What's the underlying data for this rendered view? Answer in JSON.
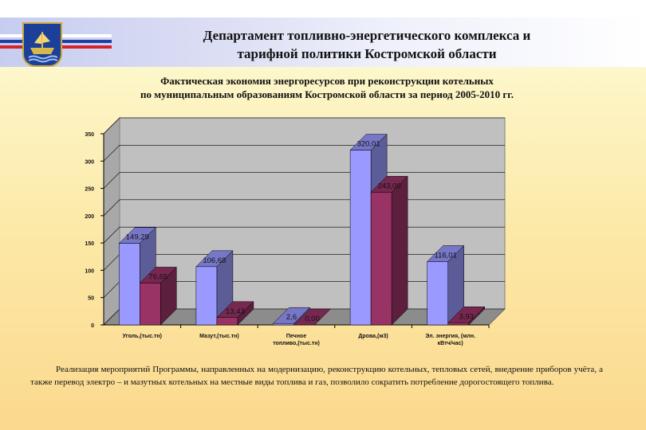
{
  "header": {
    "title_line1": "Департамент  топливно-энергетического комплекса и",
    "title_line2": "тарифной политики Костромской области"
  },
  "chart_title": {
    "line1": "Фактическая экономия энергоресурсов при реконструкции котельных",
    "line2": "по муниципальным образованиям Костромской области за период 2005-2010 гг."
  },
  "footer": {
    "text": "Реализация мероприятий Программы, направленных на модернизацию, реконструкцию котельных, тепловых сетей, внедрение приборов учёта, а также перевод электро – и мазутных котельных на местные виды топлива и газ, позволило сократить потребление дорогостоящего топлива."
  },
  "colors": {
    "series_blue": "#9999ff",
    "series_maroon": "#993366",
    "plot_wall": "#c0c0c0",
    "flag_white": "#ffffff",
    "flag_blue": "#1e3ea8",
    "flag_red": "#d4232a"
  },
  "chart_data": {
    "type": "bar",
    "categories": [
      [
        "Уголь,(тыс.тн)"
      ],
      [
        "Мазут,(тыс.тн)"
      ],
      [
        "Печное",
        "топливо,(тыс.тн)"
      ],
      [
        "Дрова,(м3)"
      ],
      [
        "Эл. энергия, (млн.",
        "кВтч/час)"
      ]
    ],
    "series": [
      {
        "values": [
          149.29,
          106.68,
          2.6,
          320.01,
          116.01
        ],
        "labels": [
          "149,29",
          "106,68",
          "2,6",
          "320,01",
          "116,01"
        ]
      },
      {
        "values": [
          76.65,
          13.43,
          0.0,
          243.0,
          3.93
        ],
        "labels": [
          "76,65",
          "13,43",
          "0,00",
          "243,00",
          "3,93"
        ]
      }
    ],
    "ylim": [
      0,
      350
    ],
    "yticks": [
      "0",
      "50",
      "100",
      "150",
      "200",
      "250",
      "300",
      "350"
    ],
    "grid": true,
    "style": "3d"
  }
}
